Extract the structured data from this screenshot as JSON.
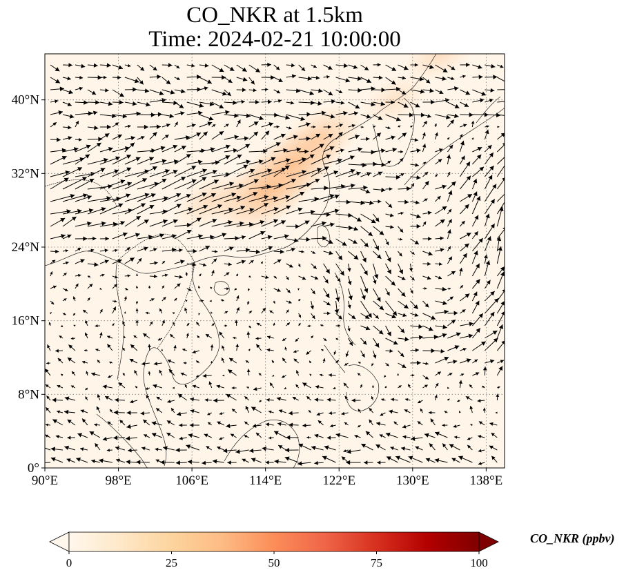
{
  "title_line1": "CO_NKR at 1.5km",
  "title_line2": "Time: 2024-02-21 10:00:00",
  "map": {
    "projection": "PlateCarree",
    "lon_range": [
      90,
      140
    ],
    "lat_range": [
      0,
      45
    ],
    "x_ticks": [
      {
        "lon": 90,
        "label": "90°E"
      },
      {
        "lon": 98,
        "label": "98°E"
      },
      {
        "lon": 106,
        "label": "106°E"
      },
      {
        "lon": 114,
        "label": "114°E"
      },
      {
        "lon": 122,
        "label": "122°E"
      },
      {
        "lon": 130,
        "label": "130°E"
      },
      {
        "lon": 138,
        "label": "138°E"
      }
    ],
    "y_ticks": [
      {
        "lat": 0,
        "label": "0°"
      },
      {
        "lat": 8,
        "label": "8°N"
      },
      {
        "lat": 16,
        "label": "16°N"
      },
      {
        "lat": 24,
        "label": "24°N"
      },
      {
        "lat": 32,
        "label": "32°N"
      },
      {
        "lat": 40,
        "label": "40°N"
      }
    ],
    "gridlines": "dotted",
    "field": "CO_NKR concentration (filled)",
    "vectors": "wind quiver arrows",
    "concentration_hotspots": [
      {
        "lon": 117,
        "lat": 33,
        "value": 30
      },
      {
        "lon": 114,
        "lat": 30,
        "value": 32
      },
      {
        "lon": 120,
        "lat": 36,
        "value": 22
      },
      {
        "lon": 108,
        "lat": 29,
        "value": 15
      },
      {
        "lon": 128,
        "lat": 40,
        "value": 12
      },
      {
        "lon": 133,
        "lat": 45,
        "value": 15
      }
    ]
  },
  "colorbar": {
    "label": "CO_NKR (ppbv)",
    "cmap": "OrRd",
    "colors": [
      "#fff7ec",
      "#fee8c8",
      "#fdd49e",
      "#fdbb84",
      "#fc8d59",
      "#ef6548",
      "#d7301f",
      "#b30000",
      "#7f0000"
    ],
    "min": 0,
    "max": 100,
    "extend": "both",
    "ticks": [
      {
        "value": 0,
        "label": "0"
      },
      {
        "value": 25,
        "label": "25"
      },
      {
        "value": 50,
        "label": "50"
      },
      {
        "value": 75,
        "label": "75"
      },
      {
        "value": 100,
        "label": "100"
      }
    ]
  },
  "colors": {
    "background_field": "#fff6e9",
    "coast": "#222222",
    "grid": "#777777",
    "arrow": "#000000"
  }
}
